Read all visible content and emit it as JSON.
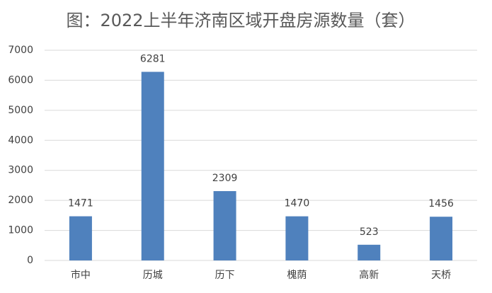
{
  "chart_data": {
    "type": "bar",
    "title": "图：2022上半年济南区域开盘房源数量（套）",
    "categories": [
      "市中",
      "历城",
      "历下",
      "槐荫",
      "高新",
      "天桥"
    ],
    "values": [
      1471,
      6281,
      2309,
      1470,
      523,
      1456
    ],
    "color": "#4f81bd",
    "ylim": [
      0,
      7000
    ],
    "yticks": [
      0,
      1000,
      2000,
      3000,
      4000,
      5000,
      6000,
      7000
    ],
    "grid": true
  }
}
